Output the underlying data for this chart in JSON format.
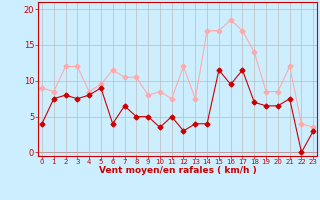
{
  "x": [
    0,
    1,
    2,
    3,
    4,
    5,
    6,
    7,
    8,
    9,
    10,
    11,
    12,
    13,
    14,
    15,
    16,
    17,
    18,
    19,
    20,
    21,
    22,
    23
  ],
  "vent_moyen": [
    4,
    7.5,
    8,
    7.5,
    8,
    9,
    4,
    6.5,
    5,
    5,
    3.5,
    5,
    3,
    4,
    4,
    11.5,
    9.5,
    11.5,
    7,
    6.5,
    6.5,
    7.5,
    0,
    3
  ],
  "rafales": [
    9,
    8.5,
    12,
    12,
    8.5,
    9.5,
    11.5,
    10.5,
    10.5,
    8,
    8.5,
    7.5,
    12,
    7.5,
    17,
    17,
    18.5,
    17,
    14,
    8.5,
    8.5,
    12,
    4,
    3.5
  ],
  "color_moyen": "#cc0000",
  "color_rafales": "#ffaaaa",
  "bg_color": "#cceeff",
  "grid_color": "#bbbbbb",
  "xlabel": "Vent moyen/en rafales ( km/h )",
  "xlabel_color": "#cc0000",
  "tick_color": "#cc0000",
  "ylabel_ticks": [
    0,
    5,
    10,
    15,
    20
  ],
  "ylim": [
    -0.5,
    21
  ],
  "xlim": [
    -0.3,
    23.3
  ]
}
